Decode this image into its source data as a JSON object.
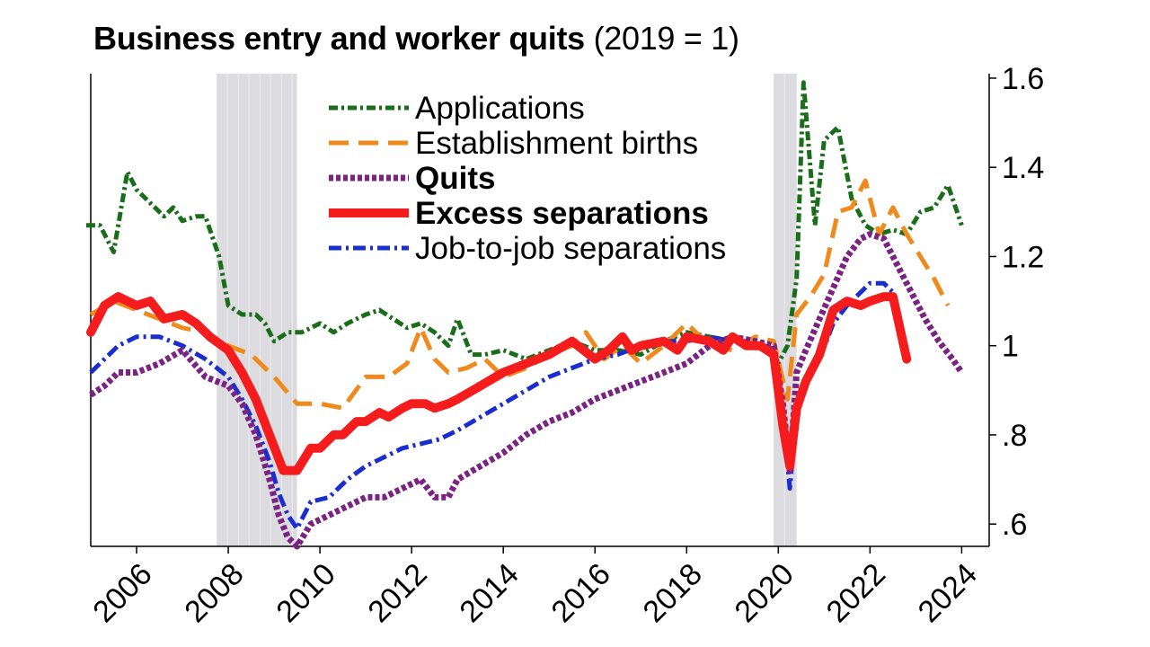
{
  "chart_data": {
    "type": "line",
    "title": "Business entry and worker quits",
    "subtitle": "(2019 = 1)",
    "xlabel": "",
    "ylabel": "",
    "xlim": [
      2005,
      2024.6
    ],
    "ylim": [
      0.55,
      1.61
    ],
    "x_ticks": [
      2006,
      2008,
      2010,
      2012,
      2014,
      2016,
      2018,
      2020,
      2022,
      2024
    ],
    "y_ticks": [
      {
        "value": 0.6,
        "label": ".6"
      },
      {
        "value": 0.8,
        "label": ".8"
      },
      {
        "value": 1.0,
        "label": "1"
      },
      {
        "value": 1.2,
        "label": "1.2"
      },
      {
        "value": 1.4,
        "label": "1.4"
      },
      {
        "value": 1.6,
        "label": "1.6"
      }
    ],
    "y_axis_side": "right",
    "grid": false,
    "legend_position": "top-center",
    "recessions": [
      [
        2007.75,
        2009.5
      ],
      [
        2019.9,
        2020.4
      ]
    ],
    "recession_color": "#dcdce0",
    "series": [
      {
        "name": "Applications",
        "color": "#1a6e1a",
        "dash": "10 4 3 4",
        "width": 5,
        "bold": false,
        "x": [
          2004.9,
          2005.2,
          2005.5,
          2005.8,
          2006.0,
          2006.3,
          2006.6,
          2006.8,
          2007.0,
          2007.3,
          2007.5,
          2007.8,
          2008.0,
          2008.3,
          2008.6,
          2008.8,
          2009.0,
          2009.3,
          2009.6,
          2010.0,
          2010.3,
          2010.6,
          2011.0,
          2011.3,
          2011.6,
          2011.9,
          2012.2,
          2012.5,
          2012.8,
          2013.0,
          2013.3,
          2013.6,
          2014.0,
          2014.5,
          2015.0,
          2015.5,
          2016.0,
          2016.5,
          2017.0,
          2017.5,
          2018.0,
          2018.5,
          2019.0,
          2019.5,
          2019.8,
          2020.0,
          2020.2,
          2020.4,
          2020.55,
          2020.8,
          2021.0,
          2021.3,
          2021.6,
          2021.9,
          2022.2,
          2022.5,
          2022.8,
          2023.1,
          2023.4,
          2023.7,
          2024.0
        ],
        "values": [
          1.27,
          1.27,
          1.21,
          1.39,
          1.35,
          1.32,
          1.29,
          1.31,
          1.28,
          1.29,
          1.29,
          1.2,
          1.09,
          1.07,
          1.07,
          1.05,
          1.01,
          1.03,
          1.03,
          1.05,
          1.03,
          1.05,
          1.07,
          1.08,
          1.06,
          1.04,
          1.05,
          1.03,
          1.0,
          1.06,
          0.98,
          0.98,
          0.99,
          0.97,
          0.99,
          1.01,
          0.99,
          0.99,
          0.98,
          1.01,
          1.03,
          1.02,
          1.01,
          1.0,
          0.99,
          0.96,
          1.0,
          1.15,
          1.59,
          1.27,
          1.46,
          1.49,
          1.33,
          1.27,
          1.25,
          1.26,
          1.25,
          1.3,
          1.31,
          1.36,
          1.27
        ]
      },
      {
        "name": "Establishment births",
        "color": "#f08a1c",
        "dash": "22 11",
        "width": 5,
        "bold": false,
        "x": [
          2005.0,
          2005.5,
          2006.0,
          2006.5,
          2007.0,
          2007.5,
          2008.0,
          2008.5,
          2009.0,
          2009.5,
          2010.0,
          2010.5,
          2011.0,
          2011.5,
          2011.9,
          2012.2,
          2012.5,
          2012.8,
          2013.2,
          2013.6,
          2014.0,
          2014.5,
          2015.0,
          2015.5,
          2015.8,
          2016.2,
          2016.6,
          2017.0,
          2017.5,
          2018.0,
          2018.5,
          2019.0,
          2019.5,
          2019.9,
          2020.2,
          2020.4,
          2020.7,
          2021.0,
          2021.3,
          2021.6,
          2021.9,
          2022.2,
          2022.5,
          2022.8,
          2023.1,
          2023.4,
          2023.7
        ],
        "values": [
          1.07,
          1.1,
          1.08,
          1.06,
          1.04,
          1.03,
          1.0,
          0.98,
          0.93,
          0.87,
          0.87,
          0.86,
          0.93,
          0.93,
          0.96,
          1.04,
          0.97,
          0.94,
          0.95,
          0.97,
          0.93,
          0.95,
          0.98,
          1.0,
          1.03,
          0.97,
          1.0,
          0.96,
          1.0,
          1.05,
          1.0,
          0.99,
          1.02,
          1.01,
          0.88,
          1.07,
          1.11,
          1.16,
          1.3,
          1.31,
          1.37,
          1.25,
          1.31,
          1.25,
          1.2,
          1.15,
          1.09
        ]
      },
      {
        "name": "Quits",
        "color": "#7b2383",
        "dash": "5 3",
        "width": 7,
        "bold": true,
        "x": [
          2005.0,
          2005.3,
          2005.6,
          2006.0,
          2006.5,
          2007.0,
          2007.5,
          2008.0,
          2008.3,
          2008.6,
          2008.9,
          2009.1,
          2009.3,
          2009.5,
          2009.8,
          2010.2,
          2010.6,
          2011.0,
          2011.4,
          2011.8,
          2012.2,
          2012.5,
          2012.8,
          2013.0,
          2013.5,
          2014.0,
          2014.5,
          2015.0,
          2015.5,
          2016.0,
          2016.5,
          2017.0,
          2017.5,
          2018.0,
          2018.5,
          2019.0,
          2019.5,
          2019.9,
          2020.1,
          2020.25,
          2020.4,
          2020.6,
          2020.9,
          2021.2,
          2021.5,
          2021.8,
          2022.0,
          2022.3,
          2022.6,
          2022.9,
          2023.2,
          2023.5,
          2023.8,
          2024.0
        ],
        "values": [
          0.89,
          0.91,
          0.94,
          0.94,
          0.96,
          0.99,
          0.93,
          0.91,
          0.87,
          0.8,
          0.7,
          0.62,
          0.57,
          0.55,
          0.6,
          0.62,
          0.64,
          0.66,
          0.66,
          0.68,
          0.7,
          0.66,
          0.66,
          0.7,
          0.73,
          0.76,
          0.8,
          0.83,
          0.85,
          0.88,
          0.9,
          0.92,
          0.94,
          0.96,
          1.0,
          1.02,
          1.01,
          1.0,
          0.87,
          0.72,
          0.94,
          0.99,
          1.06,
          1.13,
          1.2,
          1.24,
          1.25,
          1.24,
          1.18,
          1.12,
          1.06,
          1.01,
          0.97,
          0.94
        ]
      },
      {
        "name": "Excess separations",
        "color": "#f41c1c",
        "dash": "",
        "width": 10,
        "bold": true,
        "x": [
          2005.0,
          2005.3,
          2005.6,
          2006.0,
          2006.3,
          2006.6,
          2007.0,
          2007.3,
          2007.6,
          2008.0,
          2008.3,
          2008.6,
          2008.9,
          2009.2,
          2009.5,
          2009.8,
          2010.0,
          2010.3,
          2010.5,
          2010.8,
          2011.0,
          2011.3,
          2011.5,
          2011.8,
          2012.0,
          2012.3,
          2012.5,
          2012.8,
          2013.0,
          2013.5,
          2014.0,
          2014.5,
          2015.0,
          2015.5,
          2016.0,
          2016.3,
          2016.6,
          2016.8,
          2017.0,
          2017.5,
          2017.8,
          2018.0,
          2018.5,
          2018.8,
          2019.0,
          2019.3,
          2019.6,
          2019.9,
          2020.1,
          2020.25,
          2020.4,
          2020.6,
          2020.9,
          2021.2,
          2021.5,
          2021.8,
          2022.0,
          2022.3,
          2022.5,
          2022.8
        ],
        "values": [
          1.03,
          1.09,
          1.11,
          1.09,
          1.1,
          1.06,
          1.07,
          1.05,
          1.02,
          0.99,
          0.94,
          0.88,
          0.8,
          0.72,
          0.72,
          0.77,
          0.77,
          0.8,
          0.8,
          0.83,
          0.83,
          0.85,
          0.84,
          0.86,
          0.87,
          0.87,
          0.86,
          0.87,
          0.88,
          0.91,
          0.94,
          0.96,
          0.98,
          1.01,
          0.97,
          0.99,
          1.02,
          0.99,
          1.0,
          1.01,
          0.99,
          1.02,
          1.01,
          0.99,
          1.02,
          1.0,
          1.0,
          0.98,
          0.82,
          0.73,
          0.86,
          0.92,
          0.98,
          1.08,
          1.1,
          1.09,
          1.1,
          1.11,
          1.11,
          0.97
        ]
      },
      {
        "name": "Job-to-job separations",
        "color": "#1a2ecf",
        "dash": "14 5 3 5",
        "width": 5,
        "bold": false,
        "x": [
          2005.0,
          2005.3,
          2005.6,
          2006.0,
          2006.5,
          2007.0,
          2007.5,
          2008.0,
          2008.3,
          2008.6,
          2008.9,
          2009.1,
          2009.3,
          2009.5,
          2009.8,
          2010.2,
          2010.6,
          2011.0,
          2011.4,
          2011.8,
          2012.2,
          2012.6,
          2013.0,
          2013.5,
          2014.0,
          2014.5,
          2015.0,
          2015.5,
          2016.0,
          2016.5,
          2017.0,
          2017.5,
          2018.0,
          2018.5,
          2019.0,
          2019.5,
          2019.9,
          2020.1,
          2020.25,
          2020.4,
          2020.6,
          2020.9,
          2021.2,
          2021.5,
          2021.8,
          2022.0,
          2022.3,
          2022.5,
          2022.8
        ],
        "values": [
          0.94,
          0.97,
          1.0,
          1.02,
          1.02,
          1.0,
          0.97,
          0.93,
          0.88,
          0.82,
          0.74,
          0.67,
          0.62,
          0.59,
          0.65,
          0.66,
          0.7,
          0.73,
          0.75,
          0.77,
          0.78,
          0.79,
          0.81,
          0.84,
          0.87,
          0.9,
          0.93,
          0.95,
          0.97,
          0.98,
          1.0,
          1.01,
          1.01,
          1.02,
          1.01,
          1.01,
          0.99,
          0.86,
          0.68,
          0.85,
          0.91,
          0.97,
          1.05,
          1.09,
          1.12,
          1.14,
          1.14,
          1.12,
          0.99
        ]
      }
    ]
  }
}
